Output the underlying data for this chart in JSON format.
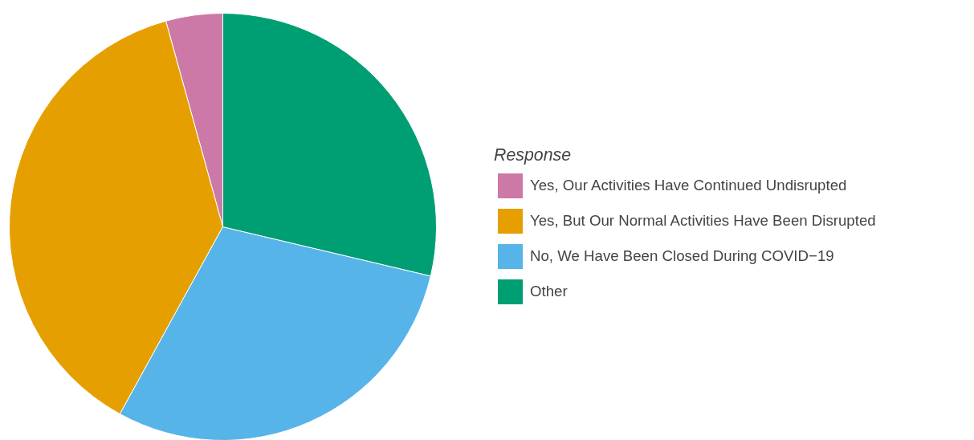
{
  "chart_data": {
    "type": "pie",
    "legend_title": "Response",
    "legend": "right",
    "categories": [
      "Yes, Our Activities Have Continued Undisrupted",
      "Yes, But Our Normal Activities Have Been Disrupted",
      "No, We Have Been Closed During COVID−19",
      "Other"
    ],
    "values": [
      4.3,
      37.7,
      29.3,
      28.7
    ],
    "colors": [
      "#cc79a7",
      "#e69f00",
      "#56b4e9",
      "#009e73"
    ]
  }
}
